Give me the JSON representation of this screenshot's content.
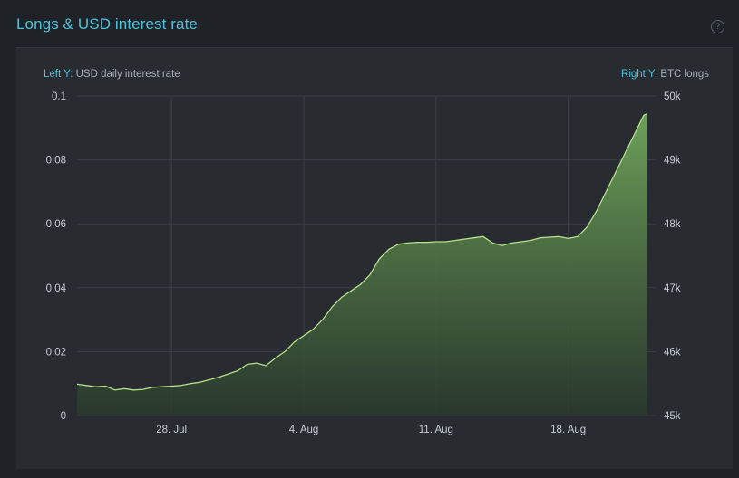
{
  "panel": {
    "title": "Longs & USD interest rate",
    "help_glyph": "?",
    "left_axis_tag": "Left Y:",
    "left_axis_name": "USD daily interest rate",
    "right_axis_tag": "Right Y:",
    "right_axis_name": "BTC longs"
  },
  "colors": {
    "accent": "#4fc3dc",
    "line": "#b6e08a",
    "fill_top": "#6da05a",
    "fill_bottom": "#2a3a2c"
  },
  "icons": {
    "help": "question-circle-icon"
  },
  "chart_data": {
    "type": "area",
    "grid": true,
    "left_axis": {
      "ylim": [
        0,
        0.1
      ],
      "ticks": [
        0,
        0.02,
        0.04,
        0.06,
        0.08,
        0.1
      ],
      "tick_labels": [
        "0",
        "0.02",
        "0.04",
        "0.06",
        "0.08",
        "0.1"
      ]
    },
    "right_axis": {
      "ylim": [
        45000,
        50000
      ],
      "ticks": [
        45000,
        46000,
        47000,
        48000,
        49000,
        50000
      ],
      "tick_labels": [
        "45k",
        "46k",
        "47k",
        "48k",
        "49k",
        "50k"
      ]
    },
    "x_axis": {
      "range": [
        "2019-07-23",
        "2019-08-22"
      ],
      "ticks": [
        "2019-07-28",
        "2019-08-04",
        "2019-08-11",
        "2019-08-18"
      ],
      "tick_labels": [
        "28. Jul",
        "4. Aug",
        "11. Aug",
        "18. Aug"
      ]
    },
    "series": [
      {
        "axis": "right",
        "x": [
          "2019-07-23",
          "2019-07-23 12:00",
          "2019-07-24",
          "2019-07-24 12:00",
          "2019-07-25",
          "2019-07-25 12:00",
          "2019-07-26",
          "2019-07-26 12:00",
          "2019-07-27",
          "2019-07-27 12:00",
          "2019-07-28",
          "2019-07-28 12:00",
          "2019-07-29",
          "2019-07-29 12:00",
          "2019-07-30",
          "2019-07-30 12:00",
          "2019-07-31",
          "2019-07-31 12:00",
          "2019-08-01",
          "2019-08-01 12:00",
          "2019-08-02",
          "2019-08-02 12:00",
          "2019-08-03",
          "2019-08-03 12:00",
          "2019-08-04",
          "2019-08-04 12:00",
          "2019-08-05",
          "2019-08-05 12:00",
          "2019-08-06",
          "2019-08-06 12:00",
          "2019-08-07",
          "2019-08-07 12:00",
          "2019-08-08",
          "2019-08-08 12:00",
          "2019-08-09",
          "2019-08-09 12:00",
          "2019-08-10",
          "2019-08-10 12:00",
          "2019-08-11",
          "2019-08-11 12:00",
          "2019-08-12",
          "2019-08-12 12:00",
          "2019-08-13",
          "2019-08-13 12:00",
          "2019-08-14",
          "2019-08-14 12:00",
          "2019-08-15",
          "2019-08-15 12:00",
          "2019-08-16",
          "2019-08-16 12:00",
          "2019-08-17",
          "2019-08-17 12:00",
          "2019-08-18",
          "2019-08-18 12:00",
          "2019-08-19",
          "2019-08-19 12:00",
          "2019-08-20",
          "2019-08-20 12:00",
          "2019-08-21",
          "2019-08-21 12:00",
          "2019-08-22",
          "2019-08-22 04:00"
        ],
        "values": [
          45490,
          45470,
          45450,
          45460,
          45400,
          45420,
          45400,
          45410,
          45440,
          45450,
          45460,
          45470,
          45500,
          45520,
          45560,
          45600,
          45650,
          45700,
          45800,
          45820,
          45780,
          45900,
          46000,
          46150,
          46250,
          46350,
          46500,
          46700,
          46850,
          46950,
          47050,
          47200,
          47450,
          47600,
          47680,
          47700,
          47710,
          47710,
          47720,
          47720,
          47740,
          47760,
          47780,
          47800,
          47700,
          47660,
          47700,
          47720,
          47740,
          47780,
          47790,
          47800,
          47770,
          47800,
          47950,
          48200,
          48500,
          48800,
          49100,
          49400,
          49700,
          49720
        ]
      }
    ]
  }
}
